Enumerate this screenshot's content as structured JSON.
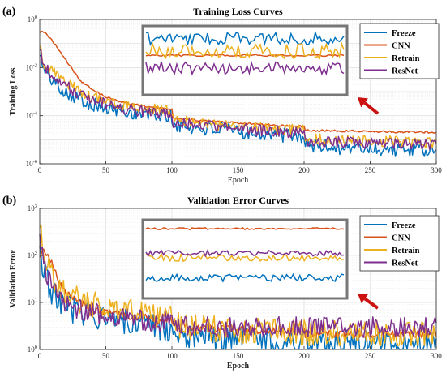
{
  "colors": {
    "Freeze": "#0072BD",
    "CNN": "#D95319",
    "Retrain": "#EDB120",
    "ResNet": "#7E2F8E",
    "inset_frame": "#777777",
    "arrow": "#CC1111",
    "grid": "#d9d9d9"
  },
  "chart_data": [
    {
      "panel_label": "(a)",
      "type": "line",
      "title": "Training Loss Curves",
      "xlabel": "Epoch",
      "ylabel": "Training Loss",
      "yscale": "log",
      "xlim": [
        0,
        300
      ],
      "ylim": [
        1e-06,
        1
      ],
      "x_ticks": [
        0,
        50,
        100,
        150,
        200,
        250,
        300
      ],
      "y_ticks": [
        {
          "value": 1e-06,
          "base": "10",
          "exp": "-6"
        },
        {
          "value": 0.0001,
          "base": "10",
          "exp": "-4"
        },
        {
          "value": 0.01,
          "base": "10",
          "exp": "-2"
        },
        {
          "value": 1,
          "base": "10",
          "exp": "0"
        }
      ],
      "grid": true,
      "legend_position": "top-right",
      "inset": true,
      "arrow": true,
      "x": [
        0,
        2,
        5,
        10,
        15,
        20,
        25,
        30,
        40,
        50,
        60,
        70,
        80,
        90,
        100,
        101,
        110,
        120,
        130,
        140,
        150,
        160,
        170,
        180,
        190,
        200,
        201,
        210,
        220,
        230,
        240,
        250,
        260,
        270,
        280,
        290,
        300
      ],
      "series": [
        {
          "name": "Freeze",
          "noise": 0.3,
          "values": [
            0.05,
            0.01,
            0.006,
            0.003,
            0.0016,
            0.001,
            0.0007,
            0.0005,
            0.0003,
            0.0002,
            0.00016,
            0.00013,
            0.00011,
            0.0001,
            9e-05,
            4e-05,
            3.5e-05,
            3e-05,
            2.8e-05,
            2.5e-05,
            2.2e-05,
            2e-05,
            1.8e-05,
            1.6e-05,
            1.5e-05,
            1.4e-05,
            6e-06,
            5.5e-06,
            5e-06,
            4.8e-06,
            4.5e-06,
            4.3e-06,
            4e-06,
            3.9e-06,
            3.7e-06,
            3.6e-06,
            3.5e-06
          ]
        },
        {
          "name": "CNN",
          "noise": 0.04,
          "values": [
            0.3,
            0.3,
            0.25,
            0.12,
            0.05,
            0.02,
            0.008,
            0.003,
            0.0012,
            0.0006,
            0.0004,
            0.0003,
            0.00025,
            0.00021,
            0.00018,
            8e-05,
            7e-05,
            6.5e-05,
            6e-05,
            5.5e-05,
            5e-05,
            4.6e-05,
            4.3e-05,
            4e-05,
            3.8e-05,
            3.6e-05,
            2.5e-05,
            2.4e-05,
            2.4e-05,
            2.3e-05,
            2.3e-05,
            2.2e-05,
            2.2e-05,
            2.1e-05,
            2.1e-05,
            2.1e-05,
            2e-05
          ]
        },
        {
          "name": "Retrain",
          "noise": 0.24,
          "values": [
            0.07,
            0.02,
            0.012,
            0.007,
            0.004,
            0.0025,
            0.0017,
            0.0011,
            0.0006,
            0.0004,
            0.0003,
            0.00024,
            0.0002,
            0.00017,
            0.00015,
            7e-05,
            6e-05,
            5e-05,
            4.5e-05,
            4e-05,
            3.6e-05,
            3.3e-05,
            3e-05,
            2.8e-05,
            2.6e-05,
            2.5e-05,
            1.2e-05,
            1.1e-05,
            1e-05,
            9.5e-06,
            9e-06,
            8.8e-06,
            8.5e-06,
            8.3e-06,
            8e-06,
            7.8e-06,
            7.5e-06
          ]
        },
        {
          "name": "ResNet",
          "noise": 0.24,
          "values": [
            0.06,
            0.015,
            0.009,
            0.005,
            0.003,
            0.0018,
            0.0012,
            0.0008,
            0.00045,
            0.0003,
            0.00022,
            0.00018,
            0.00015,
            0.00013,
            0.00012,
            5e-05,
            4.5e-05,
            4e-05,
            3.6e-05,
            3.2e-05,
            2.9e-05,
            2.6e-05,
            2.4e-05,
            2.2e-05,
            2e-05,
            1.9e-05,
            9e-06,
            8.5e-06,
            8e-06,
            7.8e-06,
            7.5e-06,
            7.3e-06,
            7e-06,
            6.8e-06,
            6.6e-06,
            6.5e-06,
            6.3e-06
          ]
        }
      ]
    },
    {
      "panel_label": "(b)",
      "type": "line",
      "title": "Validation Error Curves",
      "xlabel": "Epoch",
      "ylabel": "Validation Error",
      "yscale": "log",
      "xlim": [
        0,
        300
      ],
      "ylim": [
        1,
        1000
      ],
      "x_ticks": [
        0,
        50,
        100,
        150,
        200,
        250,
        300
      ],
      "y_ticks": [
        {
          "value": 1,
          "base": "10",
          "exp": "0"
        },
        {
          "value": 10,
          "base": "10",
          "exp": "1"
        },
        {
          "value": 100,
          "base": "10",
          "exp": "2"
        },
        {
          "value": 1000,
          "base": "10",
          "exp": "3"
        }
      ],
      "grid": true,
      "legend_position": "top-right",
      "inset": true,
      "arrow": true,
      "x": [
        0,
        2,
        5,
        10,
        15,
        20,
        30,
        40,
        50,
        60,
        70,
        80,
        90,
        100,
        105,
        110,
        120,
        130,
        140,
        150,
        160,
        170,
        180,
        190,
        200,
        201,
        210,
        220,
        230,
        240,
        250,
        260,
        270,
        280,
        290,
        300
      ],
      "series": [
        {
          "name": "Freeze",
          "noise": 0.28,
          "values": [
            150,
            60,
            30,
            15,
            10,
            8,
            6,
            5,
            4.5,
            4,
            3.6,
            3.3,
            3,
            2.8,
            2.2,
            2,
            1.9,
            1.8,
            1.75,
            1.7,
            1.65,
            1.6,
            1.55,
            1.5,
            1.5,
            1.4,
            1.38,
            1.36,
            1.35,
            1.35,
            1.34,
            1.33,
            1.33,
            1.32,
            1.32,
            1.3
          ]
        },
        {
          "name": "CNN",
          "noise": 0.08,
          "values": [
            100,
            120,
            110,
            60,
            25,
            15,
            10,
            7,
            6,
            5.5,
            5,
            4.7,
            4.3,
            4,
            3.2,
            3,
            2.9,
            2.8,
            2.75,
            2.7,
            2.6,
            2.55,
            2.5,
            2.45,
            2.4,
            2.1,
            2.1,
            2.1,
            2.1,
            2.1,
            2.1,
            2.1,
            2.1,
            2.1,
            2.1,
            2.1
          ]
        },
        {
          "name": "Retrain",
          "noise": 0.28,
          "values": [
            400,
            250,
            80,
            30,
            20,
            15,
            11,
            9,
            8,
            7,
            6.5,
            6,
            5.5,
            5,
            3.4,
            3.1,
            2.9,
            2.8,
            2.7,
            2.6,
            2.55,
            2.5,
            2.45,
            2.4,
            2.35,
            2.2,
            2.2,
            2.2,
            2.2,
            2.2,
            2.2,
            2.2,
            2.2,
            2.2,
            2.2,
            2.2
          ]
        },
        {
          "name": "ResNet",
          "noise": 0.22,
          "values": [
            300,
            150,
            40,
            20,
            12,
            9,
            7,
            6,
            5.5,
            5,
            4.5,
            4.2,
            4,
            3.8,
            3.3,
            3.2,
            3.1,
            3.05,
            3,
            3,
            3,
            3,
            3,
            3,
            3,
            3,
            3,
            3,
            3,
            3,
            3,
            3,
            3,
            3,
            3,
            3
          ]
        }
      ]
    }
  ]
}
